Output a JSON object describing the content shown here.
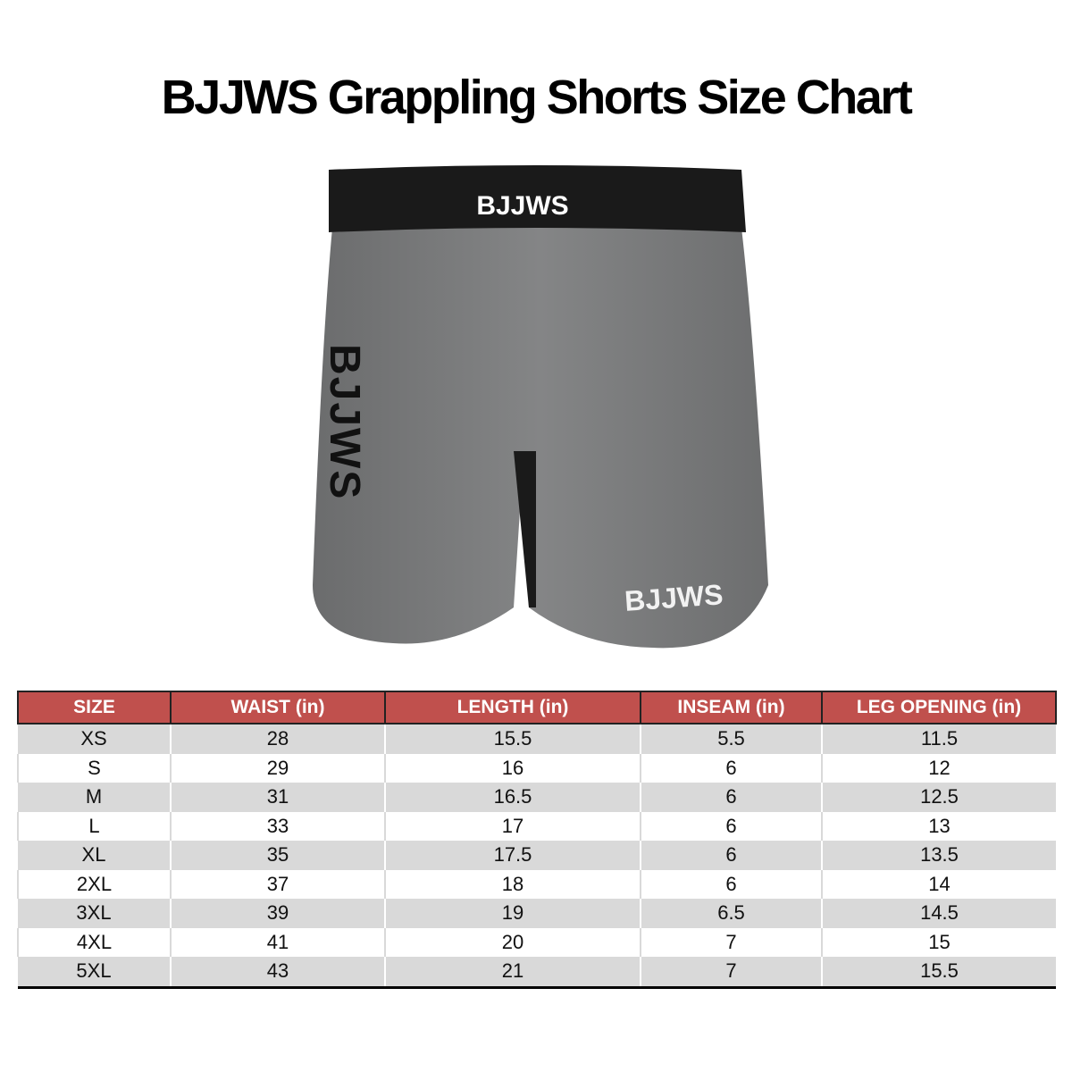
{
  "title": "BJJWS Grappling Shorts Size Chart",
  "product": {
    "logo_text": "BJJWS",
    "colors": {
      "body": "#7a7b7c",
      "waistband": "#1a1a1a",
      "header": "#c0504d"
    }
  },
  "table": {
    "headers": [
      "SIZE",
      "WAIST (in)",
      "LENGTH (in)",
      "INSEAM (in)",
      "LEG OPENING (in)"
    ],
    "rows": [
      [
        "XS",
        "28",
        "15.5",
        "5.5",
        "11.5"
      ],
      [
        "S",
        "29",
        "16",
        "6",
        "12"
      ],
      [
        "M",
        "31",
        "16.5",
        "6",
        "12.5"
      ],
      [
        "L",
        "33",
        "17",
        "6",
        "13"
      ],
      [
        "XL",
        "35",
        "17.5",
        "6",
        "13.5"
      ],
      [
        "2XL",
        "37",
        "18",
        "6",
        "14"
      ],
      [
        "3XL",
        "39",
        "19",
        "6.5",
        "14.5"
      ],
      [
        "4XL",
        "41",
        "20",
        "7",
        "15"
      ],
      [
        "5XL",
        "43",
        "21",
        "7",
        "15.5"
      ]
    ]
  }
}
